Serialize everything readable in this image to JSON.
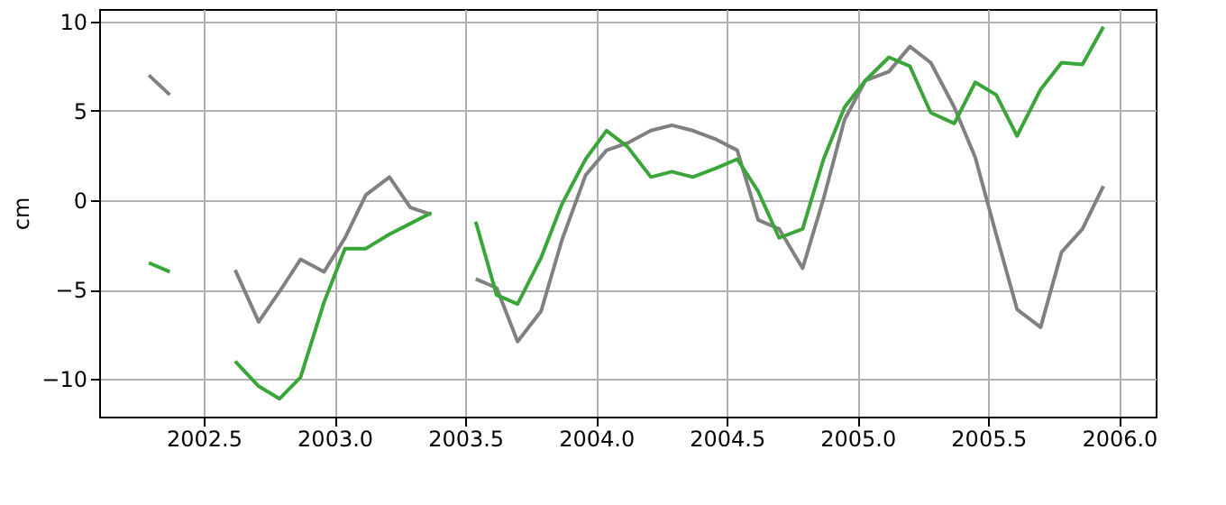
{
  "chart_data": {
    "type": "line",
    "ylabel": "cm",
    "x": [
      2002.29,
      2002.37,
      2002.5,
      2002.62,
      2002.71,
      2002.79,
      2002.87,
      2002.96,
      2003.04,
      2003.12,
      2003.21,
      2003.29,
      2003.37,
      2003.46,
      2003.54,
      2003.62,
      2003.7,
      2003.79,
      2003.87,
      2003.96,
      2004.04,
      2004.12,
      2004.21,
      2004.29,
      2004.37,
      2004.46,
      2004.54,
      2004.62,
      2004.7,
      2004.79,
      2004.87,
      2004.95,
      2005.03,
      2005.12,
      2005.2,
      2005.28,
      2005.37,
      2005.45,
      2005.53,
      2005.61,
      2005.7,
      2005.78,
      2005.86,
      2005.94
    ],
    "series": [
      {
        "color": "#808080",
        "values": [
          7.0,
          5.9,
          null,
          -3.9,
          -6.8,
          -5.1,
          -3.3,
          -4.0,
          -2.1,
          0.3,
          1.3,
          -0.4,
          -0.8,
          null,
          -4.4,
          -4.9,
          -7.9,
          -6.2,
          -2.2,
          1.4,
          2.8,
          3.2,
          3.9,
          4.2,
          3.9,
          3.4,
          2.8,
          -1.1,
          -1.6,
          -3.8,
          0.1,
          4.5,
          6.7,
          7.2,
          8.6,
          7.7,
          5.2,
          2.4,
          -1.9,
          -6.1,
          -7.1,
          -2.9,
          -1.6,
          0.8
        ]
      },
      {
        "color": "#3aa63a",
        "values": [
          -3.5,
          -4.0,
          null,
          -9.0,
          -10.4,
          -11.1,
          -9.9,
          -5.7,
          -2.7,
          -2.7,
          -1.9,
          -1.3,
          -0.7,
          null,
          -1.2,
          -5.3,
          -5.8,
          -3.2,
          -0.2,
          2.3,
          3.9,
          3.0,
          1.3,
          1.6,
          1.3,
          1.8,
          2.3,
          0.5,
          -2.1,
          -1.6,
          2.3,
          5.2,
          6.7,
          8.0,
          7.5,
          4.9,
          4.3,
          6.6,
          5.9,
          3.6,
          6.2,
          7.7,
          7.6,
          9.7
        ]
      }
    ],
    "xlim": [
      2002.1,
      2006.14
    ],
    "ylim": [
      -12.1,
      10.7
    ],
    "xticks": [
      {
        "value": 2002.5,
        "label": "2002.5"
      },
      {
        "value": 2003.0,
        "label": "2003.0"
      },
      {
        "value": 2003.5,
        "label": "2003.5"
      },
      {
        "value": 2004.0,
        "label": "2004.0"
      },
      {
        "value": 2004.5,
        "label": "2004.5"
      },
      {
        "value": 2005.0,
        "label": "2005.0"
      },
      {
        "value": 2005.5,
        "label": "2005.5"
      },
      {
        "value": 2006.0,
        "label": "2006.0"
      }
    ],
    "yticks": [
      -10,
      -5,
      0,
      5,
      10
    ],
    "grid": true,
    "line_style": "solid",
    "legend": false
  }
}
